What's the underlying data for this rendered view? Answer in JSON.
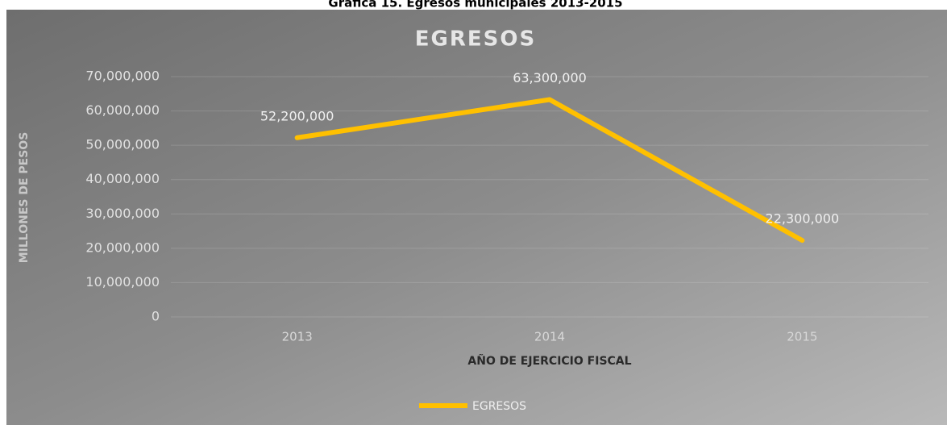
{
  "caption": "Gráfica 15. Egresos municipales 2013-2015",
  "chart_data": {
    "type": "line",
    "title": "EGRESOS",
    "x_label": "AÑO DE EJERCICIO FISCAL",
    "y_label": "MILLONES DE PESOS",
    "categories": [
      "2013",
      "2014",
      "2015"
    ],
    "series": [
      {
        "name": "EGRESOS",
        "color": "#ffc000",
        "values": [
          52200000,
          63300000,
          22300000
        ],
        "value_labels": [
          "52,200,000",
          "63,300,000",
          "22,300,000"
        ]
      }
    ],
    "ylim": [
      0,
      70000000
    ],
    "yticks": [
      0,
      {
        "value": 10000000,
        "label": "10,000,000"
      },
      {
        "value": 20000000,
        "label": "20,000,000"
      },
      {
        "value": 30000000,
        "label": "30,000,000"
      },
      {
        "value": 40000000,
        "label": "40,000,000"
      },
      {
        "value": 50000000,
        "label": "50,000,000"
      },
      {
        "value": 60000000,
        "label": "60,000,000"
      },
      {
        "value": 70000000,
        "label": "70,000,000"
      }
    ],
    "grid": true,
    "legend": "bottom"
  }
}
